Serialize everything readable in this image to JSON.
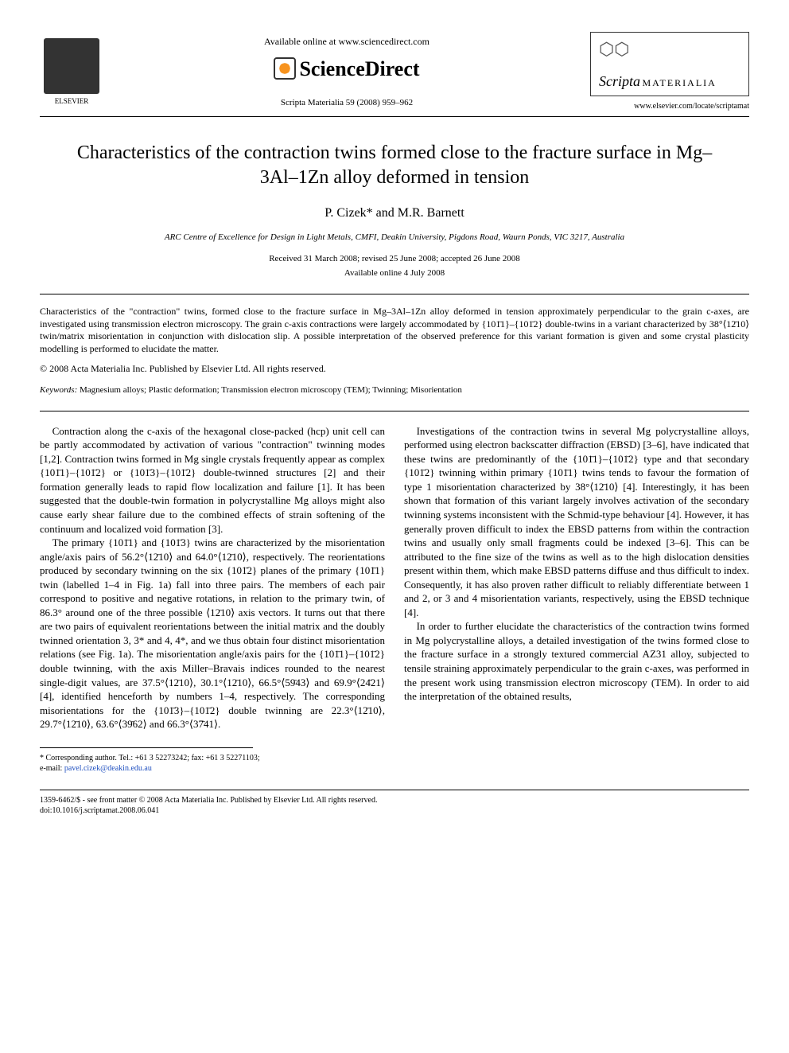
{
  "header": {
    "publisher": "ELSEVIER",
    "available_text": "Available online at www.sciencedirect.com",
    "platform": "ScienceDirect",
    "citation": "Scripta Materialia 59 (2008) 959–962",
    "journal_name": "Scripta",
    "journal_sub": "MATERIALIA",
    "journal_url": "www.elsevier.com/locate/scriptamat"
  },
  "article": {
    "title": "Characteristics of the contraction twins formed close to the fracture surface in Mg–3Al–1Zn alloy deformed in tension",
    "authors": "P. Cizek* and M.R. Barnett",
    "affiliation": "ARC Centre of Excellence for Design in Light Metals, CMFI, Deakin University, Pigdons Road, Waurn Ponds, VIC 3217, Australia",
    "received": "Received 31 March 2008; revised 25 June 2008; accepted 26 June 2008",
    "available": "Available online 4 July 2008",
    "abstract": "Characteristics of the \"contraction\" twins, formed close to the fracture surface in Mg–3Al–1Zn alloy deformed in tension approximately perpendicular to the grain c-axes, are investigated using transmission electron microscopy. The grain c-axis contractions were largely accommodated by {101̄1}–{101̄2} double-twins in a variant characterized by 38°⟨12̄10⟩ twin/matrix misorientation in conjunction with dislocation slip. A possible interpretation of the observed preference for this variant formation is given and some crystal plasticity modelling is performed to elucidate the matter.",
    "copyright": "© 2008 Acta Materialia Inc. Published by Elsevier Ltd. All rights reserved.",
    "keywords_label": "Keywords:",
    "keywords": "Magnesium alloys; Plastic deformation; Transmission electron microscopy (TEM); Twinning; Misorientation"
  },
  "body": {
    "p1": "Contraction along the c-axis of the hexagonal close-packed (hcp) unit cell can be partly accommodated by activation of various \"contraction\" twinning modes [1,2]. Contraction twins formed in Mg single crystals frequently appear as complex {101̄1}–{101̄2} or {101̄3}–{101̄2} double-twinned structures [2] and their formation generally leads to rapid flow localization and failure [1]. It has been suggested that the double-twin formation in polycrystalline Mg alloys might also cause early shear failure due to the combined effects of strain softening of the continuum and localized void formation [3].",
    "p2": "The primary {101̄1} and {101̄3} twins are characterized by the misorientation angle/axis pairs of 56.2°⟨12̄10⟩ and 64.0°⟨12̄10⟩, respectively. The reorientations produced by secondary twinning on the six {101̄2} planes of the primary {101̄1} twin (labelled 1–4 in Fig. 1a) fall into three pairs. The members of each pair correspond to positive and negative rotations, in relation to the primary twin, of 86.3° around one of the three possible ⟨12̄10⟩ axis vectors. It turns out that there are two pairs of equivalent reorientations between the initial matrix and the doubly twinned orientation 3, 3* and 4, 4*, and we thus obtain four distinct misorientation relations (see Fig. 1a). The misorientation angle/axis pairs for the {101̄1}–{101̄2} double twinning, with the axis Miller–Bravais indices rounded to the nearest single-digit values, are 37.5°⟨12̄10⟩, 30.1°⟨12̄10⟩, 66.5°⟨59̄43⟩ and 69.9°⟨24̄21⟩ [4], identified henceforth by numbers 1–4, respectively. The corresponding misorientations for the {101̄3}–{101̄2} double twinning are 22.3°⟨12̄10⟩, 29.7°⟨12̄10⟩, 63.6°⟨39̄62⟩ and 66.3°⟨37̄41⟩.",
    "p3": "Investigations of the contraction twins in several Mg polycrystalline alloys, performed using electron backscatter diffraction (EBSD) [3–6], have indicated that these twins are predominantly of the {101̄1}–{101̄2} type and that secondary {101̄2} twinning within primary {101̄1} twins tends to favour the formation of type 1 misorientation characterized by 38°⟨12̄10⟩ [4]. Interestingly, it has been shown that formation of this variant largely involves activation of the secondary twinning systems inconsistent with the Schmid-type behaviour [4]. However, it has generally proven difficult to index the EBSD patterns from within the contraction twins and usually only small fragments could be indexed [3–6]. This can be attributed to the fine size of the twins as well as to the high dislocation densities present within them, which make EBSD patterns diffuse and thus difficult to index. Consequently, it has also proven rather difficult to reliably differentiate between 1 and 2, or 3 and 4 misorientation variants, respectively, using the EBSD technique [4].",
    "p4": "In order to further elucidate the characteristics of the contraction twins formed in Mg polycrystalline alloys, a detailed investigation of the twins formed close to the fracture surface in a strongly textured commercial AZ31 alloy, subjected to tensile straining approximately perpendicular to the grain c-axes, was performed in the present work using transmission electron microscopy (TEM). In order to aid the interpretation of the obtained results,"
  },
  "footnote": {
    "corresponding": "* Corresponding author. Tel.: +61 3 52273242; fax: +61 3 52271103;",
    "email_label": "e-mail:",
    "email": "pavel.cizek@deakin.edu.au"
  },
  "footer": {
    "line1": "1359-6462/$ - see front matter © 2008 Acta Materialia Inc. Published by Elsevier Ltd. All rights reserved.",
    "line2": "doi:10.1016/j.scriptamat.2008.06.041"
  }
}
